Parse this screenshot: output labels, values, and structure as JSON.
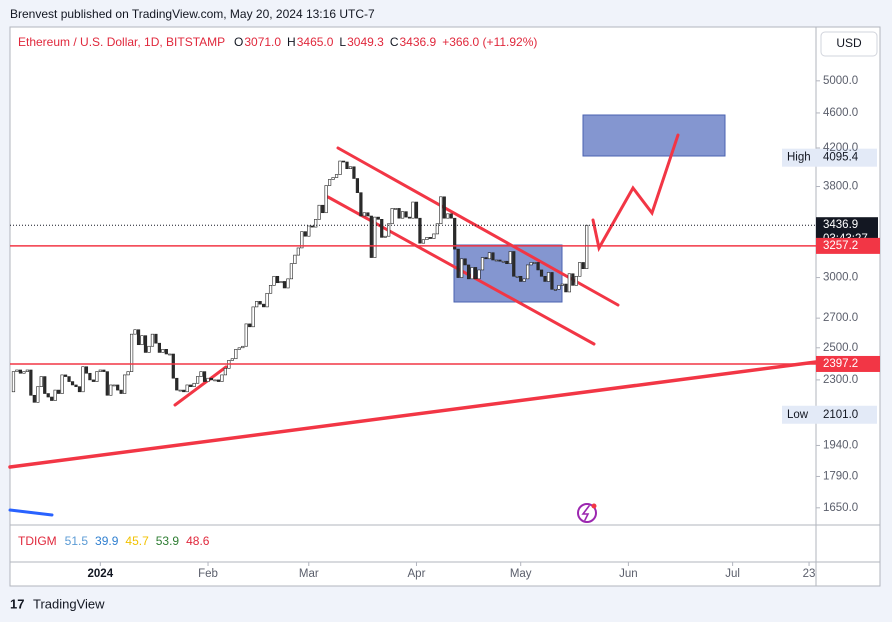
{
  "header": {
    "publisher": "Brenvest published on TradingView.com, May 20, 2024 13:16 UTC-7"
  },
  "legend": {
    "symbol": "Ethereum / U.S. Dollar, 1D, BITSTAMP",
    "open_label": "O",
    "open": "3071.0",
    "high_label": "H",
    "high": "3465.0",
    "low_label": "L",
    "low": "3049.3",
    "close_label": "C",
    "close": "3436.9",
    "change": "+366.0 (+11.92%)"
  },
  "currency": "USD",
  "indicator": {
    "name": "TDIGM",
    "values": [
      {
        "text": "51.5",
        "color": "#5b9bd5"
      },
      {
        "text": "39.9",
        "color": "#2f7fd0"
      },
      {
        "text": "45.7",
        "color": "#f2c200"
      },
      {
        "text": "53.9",
        "color": "#2e7d32"
      },
      {
        "text": "48.6",
        "color": "#e0283c"
      }
    ]
  },
  "footer": {
    "brand": "TradingView"
  },
  "chart_data": {
    "type": "candlestick",
    "log_scale": true,
    "up_color": "#ffffff",
    "down_color": "#2b2b2b",
    "outline_color": "#222222",
    "xlim": [
      0,
      232
    ],
    "xticks": [
      {
        "value": 26,
        "label": "2024"
      },
      {
        "value": 57,
        "label": "Feb"
      },
      {
        "value": 86,
        "label": "Mar"
      },
      {
        "value": 117,
        "label": "Apr"
      },
      {
        "value": 147,
        "label": "May"
      },
      {
        "value": 178,
        "label": "Jun"
      },
      {
        "value": 208,
        "label": "Jul"
      },
      {
        "value": 230,
        "label": "23"
      }
    ],
    "ylim": [
      1578,
      5750
    ],
    "yticks": [
      {
        "value": 5000,
        "label": "5000.0"
      },
      {
        "value": 4600,
        "label": "4600.0"
      },
      {
        "value": 4200,
        "label": "4200.0"
      },
      {
        "value": 3800,
        "label": "3800.0"
      },
      {
        "value": 3000,
        "label": "3000.0"
      },
      {
        "value": 2700,
        "label": "2700.0"
      },
      {
        "value": 2500,
        "label": "2500.0"
      },
      {
        "value": 2300,
        "label": "2300.0"
      },
      {
        "value": 1940,
        "label": "1940.0"
      },
      {
        "value": 1790,
        "label": "1790.0"
      },
      {
        "value": 1650,
        "label": "1650.0"
      }
    ],
    "close": [
      2230,
      2350,
      2360,
      2340,
      2350,
      2360,
      2210,
      2170,
      2260,
      2320,
      2220,
      2200,
      2180,
      2240,
      2220,
      2330,
      2320,
      2290,
      2270,
      2260,
      2230,
      2380,
      2340,
      2300,
      2290,
      2350,
      2360,
      2350,
      2210,
      2270,
      2270,
      2240,
      2220,
      2330,
      2350,
      2590,
      2620,
      2520,
      2580,
      2470,
      2510,
      2590,
      2530,
      2470,
      2490,
      2460,
      2460,
      2310,
      2240,
      2240,
      2230,
      2270,
      2260,
      2280,
      2320,
      2350,
      2290,
      2310,
      2300,
      2300,
      2290,
      2330,
      2370,
      2420,
      2430,
      2490,
      2500,
      2510,
      2660,
      2640,
      2780,
      2820,
      2800,
      2780,
      2880,
      2940,
      3010,
      2960,
      2970,
      2920,
      2990,
      3110,
      3180,
      3240,
      3380,
      3340,
      3430,
      3420,
      3490,
      3620,
      3550,
      3810,
      3870,
      3890,
      3920,
      4060,
      4050,
      3980,
      4000,
      3880,
      3740,
      3520,
      3550,
      3520,
      3160,
      3510,
      3490,
      3330,
      3340,
      3450,
      3590,
      3590,
      3500,
      3560,
      3510,
      3500,
      3650,
      3500,
      3280,
      3310,
      3330,
      3320,
      3360,
      3450,
      3700,
      3500,
      3540,
      3500,
      3230,
      3000,
      3150,
      3100,
      2990,
      3080,
      2990,
      3060,
      3160,
      3150,
      3200,
      3140,
      3140,
      3130,
      3130,
      3110,
      3210,
      3010,
      3010,
      2970,
      2990,
      3100,
      3120,
      3120,
      3060,
      3010,
      2970,
      3040,
      2910,
      2910,
      2940,
      2950,
      2890,
      3030,
      2940,
      3010,
      3120,
      3070,
      3436.9
    ],
    "price_levels": [
      {
        "value": 4095.4,
        "label": "4095.4",
        "name": "High",
        "kind": "high"
      },
      {
        "value": 3436.9,
        "label": "3436.9",
        "name": "03:43:27",
        "kind": "last"
      },
      {
        "value": 3257.2,
        "label": "3257.2",
        "kind": "line"
      },
      {
        "value": 2397.2,
        "label": "2397.2",
        "kind": "line"
      },
      {
        "value": 2101.0,
        "label": "2101.0",
        "name": "Low",
        "kind": "low"
      }
    ]
  }
}
